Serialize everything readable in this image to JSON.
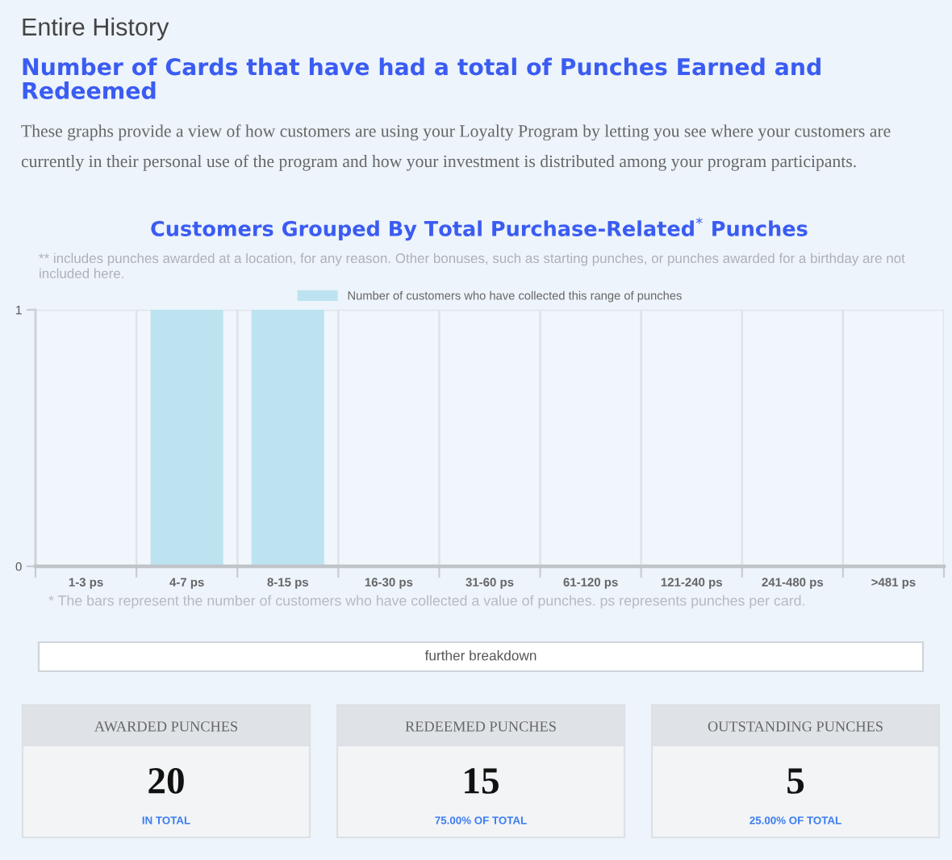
{
  "chart_data": [
    {
      "type": "other",
      "title": "Entire History",
      "subtitle": "Number of Cards that have had a total of Punches Earned and Redeemed",
      "annotations": [
        "These graphs provide a view of how customers are using your Loyalty Program by letting you see where your customers are currently in their personal use of the program and how your investment is distributed among your program participants."
      ]
    },
    {
      "type": "bar",
      "title": "Customers Grouped By Total Purchase-Related$^{*}$ Punches",
      "subtitle": "** includes punches awarded at a location, for any reason. Other bonuses, such as starting punches, or punches awarded for a birthday are not included here.",
      "categories": [
        "1-3 ps",
        "4-7 ps",
        "8-15 ps",
        "16-30 ps",
        "31-60 ps",
        "61-120 ps",
        "121-240 ps",
        "241-480 ps",
        ">481 ps"
      ],
      "series": [
        {
          "name": "Number of customers who have collected this range of punches",
          "color": "#bde3f0",
          "values": [
            0,
            1,
            1,
            0,
            0,
            0,
            0,
            0,
            0
          ]
        }
      ],
      "ylim": [
        0,
        1
      ],
      "yticks": [
        0,
        1
      ],
      "grid": true,
      "legend": "top",
      "annotations": [
        "* The bars represent the number of customers who have collected a value of punches. ps represents punches per card.",
        "further breakdown"
      ]
    },
    {
      "type": "other",
      "categories": [
        "AWARDED PUNCHES",
        "REDEEMED PUNCHES",
        "OUTSTANDING PUNCHES"
      ],
      "values": [
        20,
        15,
        5
      ],
      "data_labels": true,
      "annotations": [
        "IN TOTAL",
        "75.00% OF TOTAL",
        "25.00% OF TOTAL"
      ]
    }
  ]
}
